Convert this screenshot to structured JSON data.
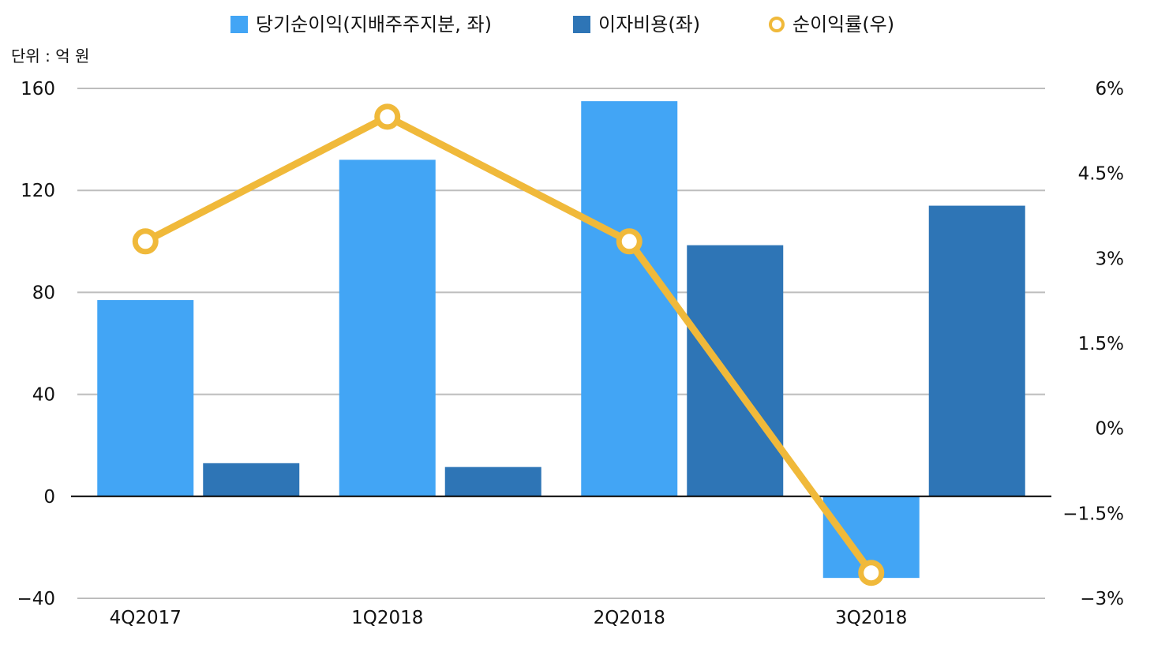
{
  "chart_data": {
    "type": "bar",
    "unit_label": "단위 : 억 원",
    "categories": [
      "4Q2017",
      "1Q2018",
      "2Q2018",
      "3Q2018"
    ],
    "series": [
      {
        "name": "당기순이익(지배주주지분, 좌)",
        "type": "bar",
        "axis": "left",
        "color": "#42A5F5",
        "values": [
          77,
          132,
          155,
          -32
        ]
      },
      {
        "name": "이자비용(좌)",
        "type": "bar",
        "axis": "left",
        "color": "#2E75B6",
        "values": [
          13,
          11.5,
          98.5,
          114
        ]
      },
      {
        "name": "순이익률(우)",
        "type": "line",
        "axis": "right",
        "color": "#F0B93A",
        "values": [
          3.3,
          5.5,
          3.3,
          -2.55
        ]
      }
    ],
    "left_axis": {
      "ylim": [
        -40,
        160
      ],
      "ticks": [
        160,
        120,
        80,
        40,
        0,
        -40
      ],
      "tick_labels": [
        "160",
        "120",
        "80",
        "40",
        "0",
        "−40"
      ]
    },
    "right_axis": {
      "ylim": [
        -3,
        6
      ],
      "ticks": [
        6,
        4.5,
        3,
        1.5,
        0,
        -1.5,
        -3
      ],
      "tick_labels": [
        "6%",
        "4.5%",
        "3%",
        "1.5%",
        "0%",
        "−1.5%",
        "−3%"
      ]
    },
    "grid": true,
    "legend_position": "top-center"
  }
}
